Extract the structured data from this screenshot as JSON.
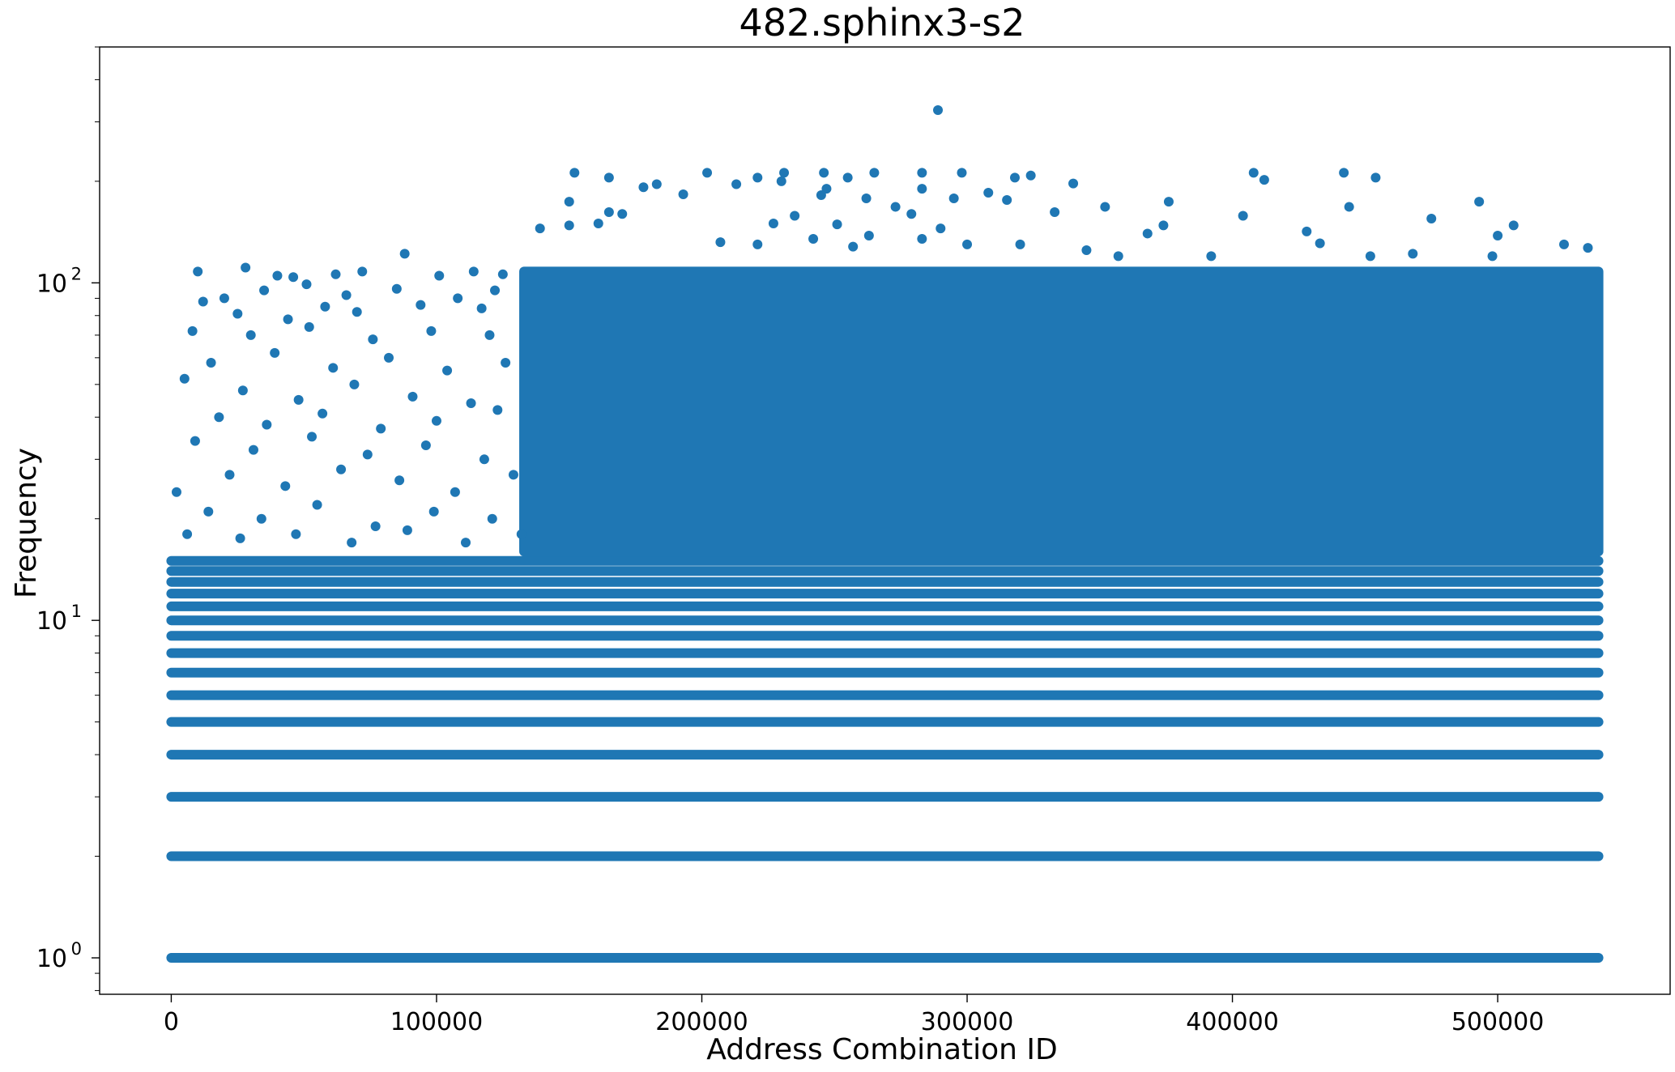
{
  "chart_data": {
    "type": "scatter",
    "title": "482.sphinx3-s2",
    "xlabel": "Address Combination ID",
    "ylabel": "Frequency",
    "x_scale": "linear",
    "y_scale": "log",
    "xlim": [
      -27000,
      565000
    ],
    "ylim": [
      0.78,
      500
    ],
    "x_ticks": [
      {
        "value": 0,
        "label": "0"
      },
      {
        "value": 100000,
        "label": "100000"
      },
      {
        "value": 200000,
        "label": "200000"
      },
      {
        "value": 300000,
        "label": "300000"
      },
      {
        "value": 400000,
        "label": "400000"
      },
      {
        "value": 500000,
        "label": "500000"
      }
    ],
    "y_ticks": [
      {
        "value": 1,
        "base": "10",
        "exp": "0"
      },
      {
        "value": 10,
        "base": "10",
        "exp": "1"
      },
      {
        "value": 100,
        "base": "10",
        "exp": "2"
      }
    ],
    "grid": false,
    "legend": "none",
    "marker_color": "#1f77b4",
    "x_data_range": [
      0,
      538000
    ],
    "dense_bands": {
      "levels": [
        1,
        2,
        3,
        4,
        5,
        6,
        7,
        8,
        9,
        10,
        11,
        12,
        13,
        14,
        15
      ],
      "x_range": [
        0,
        538000
      ]
    },
    "dense_block": {
      "x_range": [
        133000,
        538000
      ],
      "y_range": [
        16,
        108
      ]
    },
    "series": [
      {
        "points": [
          [
            289000,
            325
          ],
          [
            152000,
            212
          ],
          [
            202000,
            212
          ],
          [
            231000,
            212
          ],
          [
            246000,
            212
          ],
          [
            265000,
            212
          ],
          [
            283000,
            212
          ],
          [
            298000,
            212
          ],
          [
            324000,
            208
          ],
          [
            408000,
            212
          ],
          [
            442000,
            212
          ],
          [
            454000,
            205
          ],
          [
            412000,
            202
          ],
          [
            165000,
            205
          ],
          [
            221000,
            205
          ],
          [
            255000,
            205
          ],
          [
            318000,
            205
          ],
          [
            340000,
            197
          ],
          [
            230000,
            200
          ],
          [
            178000,
            192
          ],
          [
            183000,
            196
          ],
          [
            213000,
            196
          ],
          [
            247000,
            190
          ],
          [
            283000,
            190
          ],
          [
            308000,
            185
          ],
          [
            295000,
            178
          ],
          [
            315000,
            176
          ],
          [
            273000,
            168
          ],
          [
            352000,
            168
          ],
          [
            376000,
            174
          ],
          [
            444000,
            168
          ],
          [
            493000,
            174
          ],
          [
            150000,
            174
          ],
          [
            165000,
            162
          ],
          [
            193000,
            183
          ],
          [
            245000,
            182
          ],
          [
            262000,
            178
          ],
          [
            235000,
            158
          ],
          [
            279000,
            160
          ],
          [
            251000,
            149
          ],
          [
            404000,
            158
          ],
          [
            428000,
            142
          ],
          [
            475000,
            155
          ],
          [
            506000,
            148
          ],
          [
            139000,
            145
          ],
          [
            170000,
            160
          ],
          [
            227000,
            150
          ],
          [
            263000,
            138
          ],
          [
            290000,
            145
          ],
          [
            333000,
            162
          ],
          [
            368000,
            140
          ],
          [
            374000,
            148
          ],
          [
            500000,
            138
          ],
          [
            433000,
            131
          ],
          [
            150000,
            148
          ],
          [
            161000,
            150
          ],
          [
            207000,
            132
          ],
          [
            221000,
            130
          ],
          [
            242000,
            135
          ],
          [
            257000,
            128
          ],
          [
            283000,
            135
          ],
          [
            300000,
            130
          ],
          [
            320000,
            130
          ],
          [
            345000,
            125
          ],
          [
            357000,
            120
          ],
          [
            392000,
            120
          ],
          [
            452000,
            120
          ],
          [
            468000,
            122
          ],
          [
            498000,
            120
          ],
          [
            525000,
            130
          ],
          [
            534000,
            127
          ],
          [
            88000,
            122
          ],
          [
            28000,
            111
          ],
          [
            10000,
            108
          ],
          [
            40000,
            105
          ],
          [
            46000,
            104
          ],
          [
            62000,
            106
          ],
          [
            72000,
            108
          ],
          [
            101000,
            105
          ],
          [
            114000,
            108
          ],
          [
            125000,
            106
          ],
          [
            20000,
            90
          ],
          [
            35000,
            95
          ],
          [
            51000,
            99
          ],
          [
            66000,
            92
          ],
          [
            85000,
            96
          ],
          [
            108000,
            90
          ],
          [
            122000,
            95
          ],
          [
            12000,
            88
          ],
          [
            25000,
            81
          ],
          [
            44000,
            78
          ],
          [
            58000,
            85
          ],
          [
            70000,
            82
          ],
          [
            94000,
            86
          ],
          [
            117000,
            84
          ],
          [
            8000,
            72
          ],
          [
            30000,
            70
          ],
          [
            52000,
            74
          ],
          [
            76000,
            68
          ],
          [
            98000,
            72
          ],
          [
            120000,
            70
          ],
          [
            15000,
            58
          ],
          [
            39000,
            62
          ],
          [
            61000,
            56
          ],
          [
            82000,
            60
          ],
          [
            104000,
            55
          ],
          [
            126000,
            58
          ],
          [
            5000,
            52
          ],
          [
            27000,
            48
          ],
          [
            48000,
            45
          ],
          [
            69000,
            50
          ],
          [
            91000,
            46
          ],
          [
            113000,
            44
          ],
          [
            18000,
            40
          ],
          [
            36000,
            38
          ],
          [
            57000,
            41
          ],
          [
            79000,
            37
          ],
          [
            100000,
            39
          ],
          [
            123000,
            42
          ],
          [
            9000,
            34
          ],
          [
            31000,
            32
          ],
          [
            53000,
            35
          ],
          [
            74000,
            31
          ],
          [
            96000,
            33
          ],
          [
            118000,
            30
          ],
          [
            2000,
            24
          ],
          [
            22000,
            27
          ],
          [
            43000,
            25
          ],
          [
            64000,
            28
          ],
          [
            86000,
            26
          ],
          [
            107000,
            24
          ],
          [
            129000,
            27
          ],
          [
            14000,
            21
          ],
          [
            34000,
            20
          ],
          [
            55000,
            22
          ],
          [
            77000,
            19
          ],
          [
            99000,
            21
          ],
          [
            121000,
            20
          ],
          [
            6000,
            18
          ],
          [
            26000,
            17.5
          ],
          [
            47000,
            18
          ],
          [
            68000,
            17
          ],
          [
            89000,
            18.5
          ],
          [
            111000,
            17
          ],
          [
            132000,
            18
          ]
        ]
      }
    ]
  }
}
